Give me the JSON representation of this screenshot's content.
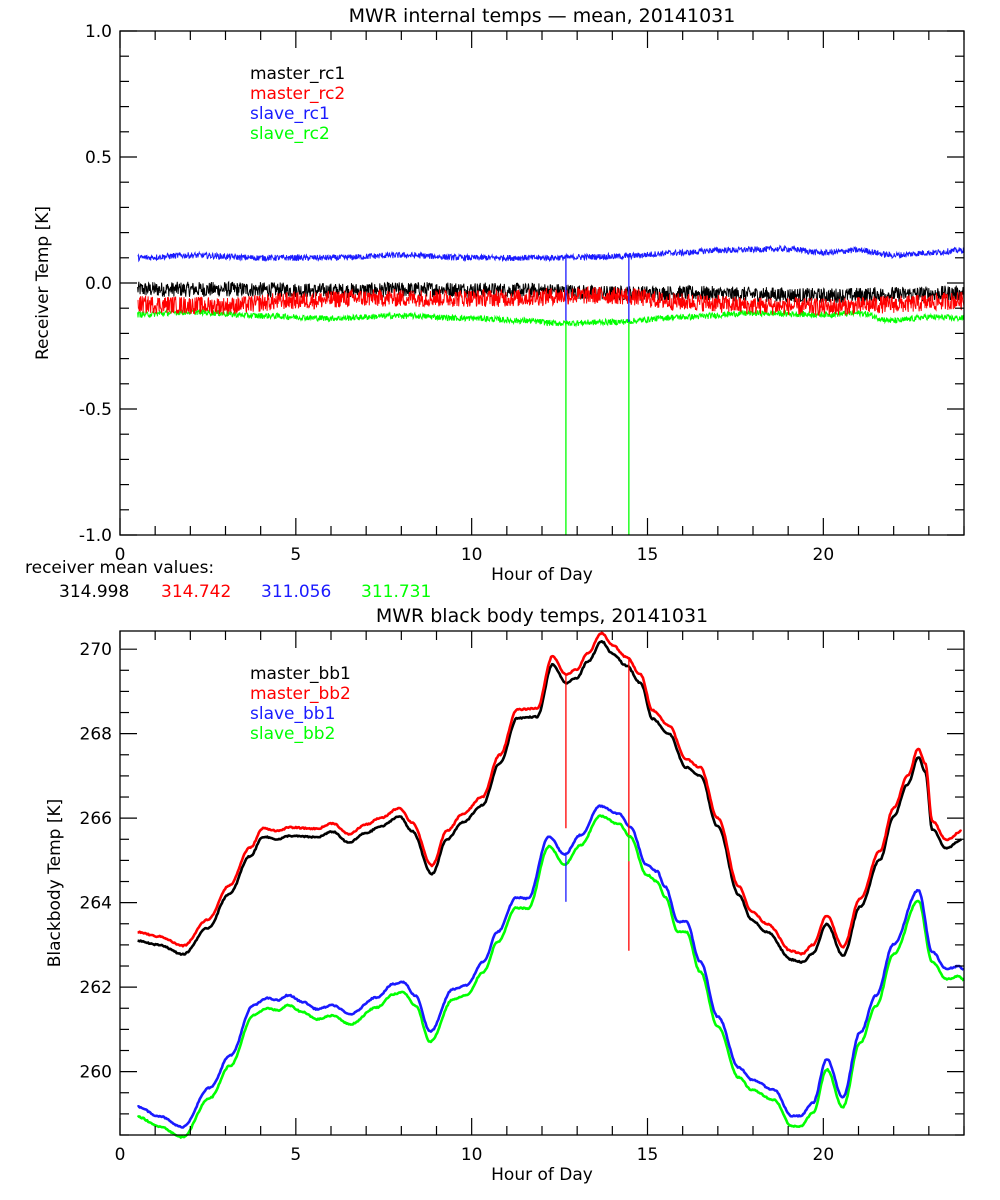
{
  "colors": {
    "black": "#000000",
    "red": "#ff0000",
    "blue": "#1a1aff",
    "green": "#00ff00"
  },
  "chart_data": [
    {
      "type": "line",
      "title": "MWR internal temps — mean, 20141031",
      "xlabel": "Hour of Day",
      "ylabel": "Receiver Temp [K]",
      "xlim": [
        0,
        24
      ],
      "ylim": [
        -1.0,
        1.0
      ],
      "xticks": [
        0,
        5,
        10,
        15,
        20
      ],
      "xtick_labels": [
        "0",
        "5",
        "10",
        "15",
        "20"
      ],
      "yticks": [
        -1.0,
        -0.5,
        0.0,
        0.5,
        1.0
      ],
      "ytick_labels": [
        "-1.0",
        "-0.5",
        "0.0",
        "0.5",
        "1.0"
      ],
      "grid": false,
      "legend_position": "top-left",
      "series": [
        {
          "name": "master_rc1",
          "color": "#000000",
          "noise": 0.03,
          "x": [
            0.5,
            3,
            6,
            9,
            12,
            14,
            16,
            18,
            20,
            22,
            24
          ],
          "y": [
            -0.025,
            -0.025,
            -0.03,
            -0.025,
            -0.03,
            -0.04,
            -0.04,
            -0.045,
            -0.05,
            -0.045,
            -0.04
          ]
        },
        {
          "name": "master_rc2",
          "color": "#ff0000",
          "noise": 0.035,
          "x": [
            0.5,
            3,
            5,
            7,
            9,
            11,
            13,
            14,
            16,
            18,
            20,
            22,
            24
          ],
          "y": [
            -0.085,
            -0.09,
            -0.07,
            -0.06,
            -0.06,
            -0.06,
            -0.05,
            -0.05,
            -0.075,
            -0.09,
            -0.095,
            -0.085,
            -0.07
          ]
        },
        {
          "name": "slave_rc1",
          "color": "#1a1aff",
          "noise": 0.012,
          "x": [
            0.5,
            2,
            4,
            6,
            8,
            10,
            12,
            14,
            16,
            17,
            19,
            20,
            21,
            22,
            23,
            24
          ],
          "y": [
            0.1,
            0.11,
            0.1,
            0.1,
            0.11,
            0.1,
            0.1,
            0.105,
            0.12,
            0.13,
            0.135,
            0.12,
            0.13,
            0.11,
            0.12,
            0.13
          ]
        },
        {
          "name": "slave_rc2",
          "color": "#00ff00",
          "noise": 0.012,
          "x": [
            0.5,
            2,
            4,
            6,
            8,
            10,
            11.5,
            12.5,
            14,
            16,
            18,
            20,
            21,
            22,
            23,
            24
          ],
          "y": [
            -0.125,
            -0.115,
            -0.13,
            -0.14,
            -0.13,
            -0.14,
            -0.15,
            -0.16,
            -0.155,
            -0.135,
            -0.12,
            -0.125,
            -0.12,
            -0.15,
            -0.135,
            -0.14
          ]
        }
      ],
      "spikes": [
        {
          "x": 12.68,
          "color": "#1a1aff",
          "from": 0.1,
          "to": -0.15
        },
        {
          "x": 12.68,
          "color": "#00ff00",
          "from": -0.15,
          "to": -1.0
        },
        {
          "x": 14.47,
          "color": "#1a1aff",
          "from": 0.105,
          "to": -0.155
        },
        {
          "x": 14.47,
          "color": "#00ff00",
          "from": -0.155,
          "to": -1.0
        }
      ],
      "annotation": {
        "label": "receiver mean values:",
        "values": [
          {
            "text": "314.998",
            "color": "#000000"
          },
          {
            "text": "314.742",
            "color": "#ff0000"
          },
          {
            "text": "311.056",
            "color": "#1a1aff"
          },
          {
            "text": "311.731",
            "color": "#00ff00"
          }
        ]
      }
    },
    {
      "type": "line",
      "title": "MWR black body temps, 20141031",
      "xlabel": "Hour of Day",
      "ylabel": "Blackbody Temp [K]",
      "xlim": [
        0,
        24
      ],
      "ylim": [
        258.5,
        270.43
      ],
      "xticks": [
        0,
        5,
        10,
        15,
        20
      ],
      "xtick_labels": [
        "0",
        "5",
        "10",
        "15",
        "20"
      ],
      "yticks": [
        260,
        262,
        264,
        266,
        268,
        270
      ],
      "ytick_labels": [
        "260",
        "262",
        "264",
        "266",
        "268",
        "270"
      ],
      "grid": false,
      "legend_position": "top-left",
      "series": [
        {
          "name": "master_bb1",
          "color": "#000000",
          "offset_from": "master_bb2",
          "offset": -0.2
        },
        {
          "name": "master_bb2",
          "color": "#ff0000",
          "x": [
            0.5,
            1.1,
            1.8,
            2.5,
            3.1,
            3.7,
            4.07,
            4.5,
            4.8,
            5.6,
            6.05,
            6.5,
            7.0,
            7.4,
            7.95,
            8.3,
            8.87,
            9.3,
            9.75,
            10.3,
            10.8,
            11.3,
            11.86,
            12.3,
            12.68,
            12.99,
            13.3,
            13.7,
            14.0,
            14.4,
            14.8,
            15.15,
            15.6,
            16.1,
            16.5,
            17.0,
            17.6,
            17.96,
            18.4,
            19.1,
            19.4,
            19.7,
            20.1,
            20.56,
            21.05,
            21.6,
            22.0,
            22.4,
            22.7,
            22.9,
            23.1,
            23.5,
            23.93
          ],
          "y": [
            263.3,
            263.2,
            262.98,
            263.6,
            264.4,
            265.3,
            265.76,
            265.7,
            265.78,
            265.75,
            265.88,
            265.62,
            265.85,
            266.0,
            266.24,
            265.9,
            264.88,
            265.7,
            266.1,
            266.5,
            267.5,
            268.57,
            268.6,
            269.83,
            269.4,
            269.52,
            269.9,
            270.38,
            270.1,
            269.81,
            269.4,
            268.55,
            268.2,
            267.4,
            267.2,
            266.0,
            264.38,
            263.79,
            263.5,
            262.85,
            262.79,
            263.0,
            263.69,
            262.95,
            264.1,
            265.21,
            266.24,
            267.0,
            267.64,
            267.3,
            265.93,
            265.48,
            265.69
          ]
        },
        {
          "name": "slave_bb1",
          "color": "#1a1aff",
          "x": [
            0.5,
            1.1,
            1.77,
            2.56,
            3.13,
            3.8,
            4.17,
            4.5,
            4.78,
            5.2,
            5.6,
            6.05,
            6.54,
            7.3,
            7.77,
            8.05,
            8.4,
            8.82,
            9.47,
            9.86,
            10.33,
            10.74,
            11.27,
            11.6,
            12.2,
            12.64,
            13.1,
            13.65,
            14.2,
            14.5,
            14.98,
            15.27,
            15.5,
            15.87,
            16.1,
            16.5,
            17.0,
            17.6,
            17.96,
            18.6,
            19.1,
            19.35,
            19.7,
            20.1,
            20.55,
            21.05,
            21.5,
            22.0,
            22.7,
            23.1,
            23.5,
            23.87,
            24.0
          ],
          "y": [
            259.17,
            258.95,
            258.69,
            259.62,
            260.38,
            261.57,
            261.74,
            261.69,
            261.81,
            261.65,
            261.48,
            261.57,
            261.36,
            261.76,
            262.07,
            262.12,
            261.8,
            260.95,
            261.95,
            262.05,
            262.6,
            263.31,
            264.12,
            264.1,
            265.57,
            265.14,
            265.6,
            266.29,
            266.1,
            265.8,
            264.9,
            264.74,
            264.38,
            263.55,
            263.55,
            262.6,
            261.3,
            260.1,
            259.81,
            259.57,
            258.95,
            258.95,
            259.26,
            260.29,
            259.4,
            260.93,
            261.8,
            263.02,
            264.29,
            262.83,
            262.43,
            262.5,
            262.4
          ]
        },
        {
          "name": "slave_bb2",
          "color": "#00ff00",
          "offset_from": "slave_bb1",
          "offset": -0.24
        }
      ],
      "spikes": [
        {
          "x": 12.68,
          "color": "#ff0000",
          "from": 269.4,
          "to": 265.76
        },
        {
          "x": 12.68,
          "color": "#1a1aff",
          "from": 265.14,
          "to": 264.02
        },
        {
          "x": 14.47,
          "color": "#ff0000",
          "from": 269.81,
          "to": 262.86
        },
        {
          "x": 14.47,
          "color": "#00ff00",
          "from": 265.6,
          "to": 264.98
        }
      ]
    }
  ]
}
